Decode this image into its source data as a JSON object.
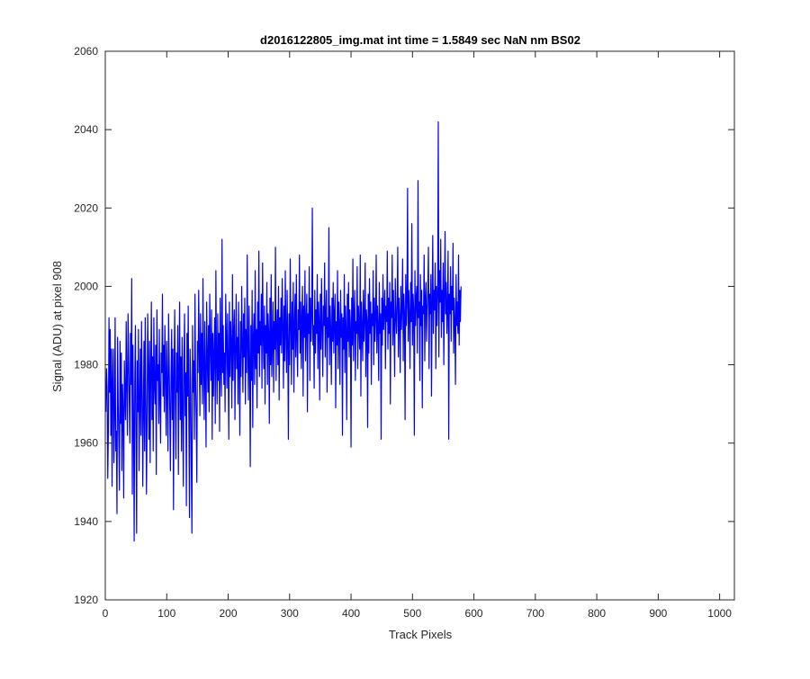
{
  "chart_data": {
    "type": "line",
    "title": "d2016122805_img.mat int time = 1.5849 sec  NaN nm BS02",
    "xlabel": "Track Pixels",
    "ylabel": "Signal (ADU) at pixel 908",
    "xlim": [
      0,
      1024
    ],
    "ylim": [
      1920,
      2060
    ],
    "xticks": [
      0,
      100,
      200,
      300,
      400,
      500,
      600,
      700,
      800,
      900,
      1000
    ],
    "yticks": [
      1920,
      1940,
      1960,
      1980,
      2000,
      2020,
      2040,
      2060
    ],
    "grid": false,
    "series": [
      {
        "color": "#0000ff",
        "x_start": 1,
        "x_step": 1,
        "values": [
          1968,
          1979,
          1974,
          1951,
          1963,
          1992,
          1973,
          1989,
          1962,
          1984,
          1949,
          1976,
          1984,
          1955,
          1967,
          1992,
          1958,
          1963,
          1942,
          1987,
          1970,
          1961,
          1948,
          1986,
          1965,
          1983,
          1953,
          1975,
          1968,
          1946,
          1981,
          1972,
          1966,
          1991,
          1975,
          1962,
          1993,
          1982,
          1971,
          1960,
          1988,
          1975,
          2002,
          1947,
          1985,
          1966,
          1935,
          1976,
          1990,
          1962,
          1937,
          1981,
          1968,
          1989,
          1953,
          1970,
          1984,
          1962,
          1991,
          1975,
          1949,
          1968,
          1986,
          1958,
          1992,
          1972,
          1947,
          1965,
          1993,
          1980,
          1961,
          1986,
          1955,
          1978,
          1996,
          1966,
          1982,
          1958,
          1992,
          1975,
          1970,
          1985,
          1952,
          1994,
          1976,
          1980,
          1965,
          1989,
          1971,
          1960,
          1983,
          1978,
          1998,
          1972,
          1985,
          1968,
          1990,
          1977,
          1962,
          1986,
          1974,
          1958,
          1993,
          1981,
          1968,
          1953,
          1977,
          1989,
          1966,
          1984,
          1943,
          1978,
          1994,
          1970,
          1956,
          1983,
          1973,
          1990,
          1952,
          1979,
          1996,
          1966,
          1982,
          1958,
          1987,
          1970,
          1949,
          1981,
          1993,
          1967,
          1978,
          1944,
          1988,
          1972,
          1995,
          1967,
          1941,
          1984,
          1976,
          1954,
          1937,
          1990,
          1973,
          1981,
          1961,
          1998,
          1976,
          1966,
          1950,
          1986,
          1978,
          1999,
          1984,
          1967,
          1993,
          1975,
          1988,
          1970,
          2002,
          1979,
          1966,
          1991,
          1977,
          1959,
          1996,
          1982,
          1973,
          1990,
          1968,
          1998,
          1985,
          1976,
          1994,
          1961,
          1988,
          1972,
          1983,
          1992,
          1965,
          2004,
          1981,
          1970,
          1993,
          1976,
          1988,
          1963,
          1997,
          1980,
          1972,
          2012,
          1978,
          1990,
          1975,
          1983,
          1968,
          1998,
          1987,
          1974,
          1993,
          1981,
          1961,
          1996,
          1977,
          1991,
          1985,
          1969,
          2003,
          1976,
          1988,
          1994,
          1966,
          1983,
          1998,
          1979,
          1987,
          1970,
          1996,
          1980,
          1962,
          1991,
          1977,
          2000,
          1985,
          1973,
          1993,
          1982,
          1997,
          1970,
          1989,
          1978,
          2008,
          1984,
          1971,
          1995,
          1981,
          1954,
          1990,
          1976,
          1999,
          1964,
          1987,
          1993,
          1975,
          2004,
          1979,
          1989,
          1969,
          1996,
          1983,
          2009,
          1977,
          1991,
          1985,
          1998,
          1974,
          2006,
          1988,
          1979,
          1995,
          1970,
          1990,
          1983,
          2001,
          1975,
          1993,
          1988,
          1965,
          1997,
          1980,
          2003,
          1977,
          1986,
          1996,
          1973,
          1991,
          1984,
          2010,
          1976,
          1989,
          1994,
          1980,
          2000,
          1971,
          1992,
          1985,
          1997,
          1983,
          2002,
          1990,
          1974,
          1995,
          1981,
          2004,
          1988,
          1978,
          1999,
          1986,
          1961,
          1993,
          1980,
          2007,
          1991,
          1975,
          1996,
          1984,
          2001,
          1973,
          1990,
          1998,
          1982,
          2003,
          1986,
          1977,
          1994,
          1989,
          2008,
          1983,
          1996,
          1979,
          1992,
          2000,
          1972,
          1995,
          1987,
          2004,
          1981,
          1991,
          1998,
          1968,
          1993,
          1988,
          2005,
          1976,
          1997,
          1986,
          1992,
          2020,
          1985,
          1990,
          1974,
          1999,
          1983,
          1994,
          1988,
          2003,
          1979,
          1996,
          1991,
          1971,
          1998,
          1984,
          2002,
          1989,
          1977,
          1995,
          1990,
          2006,
          1982,
          1993,
          1999,
          1973,
          1992,
          1987,
          2015,
          1980,
          1995,
          1989,
          1975,
          1997,
          1986,
          2001,
          1983,
          1993,
          1998,
          1969,
          1991,
          1985,
          2004,
          1979,
          1996,
          1990,
          1975,
          1999,
          1987,
          1993,
          1962,
          1992,
          1984,
          2003,
          1978,
          1995,
          1989,
          1966,
          1998,
          1986,
          2001,
          1982,
          1994,
          1990,
          1959,
          1997,
          1985,
          2007,
          1981,
          1993,
          1999,
          1976,
          1991,
          1988,
          2005,
          1979,
          1995,
          1990,
          1984,
          2008,
          1972,
          1996,
          1989,
          1981,
          1999,
          1986,
          1992,
          2006,
          1977,
          1994,
          1991,
          1964,
          1998,
          1983,
          2002,
          1988,
          1996,
          1975,
          1993,
          1990,
          2004,
          1980,
          1997,
          1986,
          1992,
          2008,
          1983,
          1995,
          1990,
          1976,
          2001,
          1988,
          1993,
          1961,
          1997,
          1985,
          2003,
          1989,
          1994,
          1999,
          1979,
          1995,
          1991,
          2009,
          1984,
          1997,
          1988,
          2001,
          1970,
          1996,
          1992,
          2008,
          1985,
          1999,
          1990,
          1977,
          2002,
          1993,
          1988,
          1996,
          2010,
          1982,
          1997,
          1992,
          1978,
          2000,
          1989,
          1995,
          2007,
          1981,
          1998,
          1993,
          1966,
          2003,
          1990,
          1996,
          2025,
          1986,
          1999,
          1993,
          1979,
          2001,
          1991,
          2016,
          1985,
          1998,
          1994,
          1962,
          2004,
          1990,
          1997,
          2000,
          1983,
          2027,
          1992,
          1996,
          1976,
          2003,
          1990,
          1999,
          1969,
          1995,
          1993,
          2008,
          1981,
          1997,
          2001,
          1986,
          1994,
          1999,
          2010,
          1979,
          1998,
          1993,
          2003,
          1972,
          1996,
          2013,
          1988,
          1999,
          1994,
          2006,
          1979,
          2000,
          1990,
          1998,
          2042,
          1982,
          2004,
          1996,
          2012,
          1987,
          1999,
          1991,
          2006,
          1980,
          1997,
          2014,
          1993,
          2001,
          1988,
          1995,
          2009,
          1961,
          1998,
          1993,
          2005,
          1986,
          2000,
          1994,
          2011,
          1983,
          1997,
          1991,
          1975,
          2003,
          1990,
          1996,
          1988,
          2008,
          1985,
          1999,
          1991,
          2000
        ]
      }
    ]
  }
}
